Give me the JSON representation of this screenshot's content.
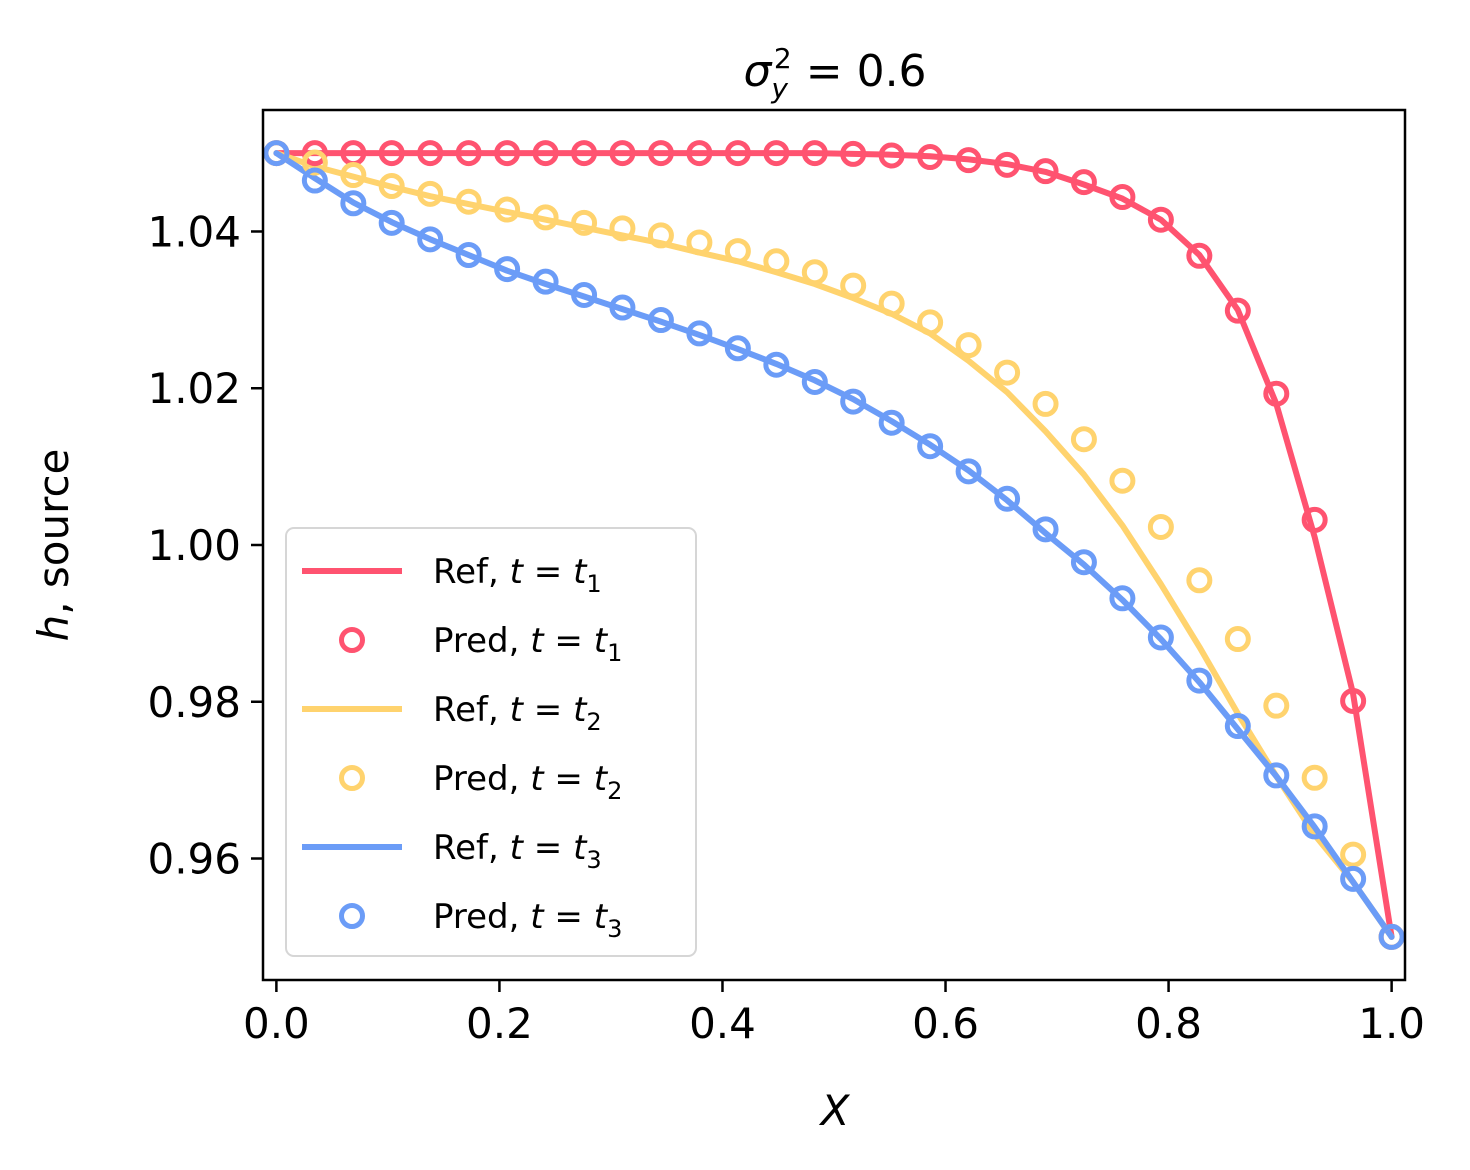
{
  "chart_data": {
    "type": "line",
    "title": {
      "base": "σ",
      "sub": "y",
      "sup": "2",
      "rest": " = 0.6"
    },
    "xlabel": "X",
    "ylabel": {
      "italic": "h",
      "rest": ", source"
    },
    "xlim": [
      -0.012,
      1.012
    ],
    "ylim": [
      0.9445,
      1.0555
    ],
    "xticks": [
      0.0,
      0.2,
      0.4,
      0.6,
      0.8,
      1.0
    ],
    "xtick_labels": [
      "0.0",
      "0.2",
      "0.4",
      "0.6",
      "0.8",
      "1.0"
    ],
    "yticks": [
      0.96,
      0.98,
      1.0,
      1.02,
      1.04
    ],
    "ytick_labels": [
      "0.96",
      "0.98",
      "1.00",
      "1.02",
      "1.04"
    ],
    "legend_position": "lower-left",
    "colors": {
      "t1": "#ff5370",
      "t2": "#ffd36e",
      "t3": "#6b9cf7"
    },
    "x": [
      0.0,
      0.0345,
      0.069,
      0.1034,
      0.1379,
      0.1724,
      0.2069,
      0.2414,
      0.2759,
      0.3103,
      0.3448,
      0.3793,
      0.4138,
      0.4483,
      0.4828,
      0.5172,
      0.5517,
      0.5862,
      0.6207,
      0.6552,
      0.6897,
      0.7241,
      0.7586,
      0.7931,
      0.8276,
      0.8621,
      0.8966,
      0.931,
      0.9655,
      1.0
    ],
    "series": [
      {
        "name": "Ref, t = t1",
        "kind": "ref",
        "color_key": "t1",
        "values": [
          1.05,
          1.05,
          1.05,
          1.05,
          1.05,
          1.05,
          1.05,
          1.05,
          1.05,
          1.05,
          1.05,
          1.05,
          1.05,
          1.05,
          1.05,
          1.0499,
          1.0498,
          1.0496,
          1.0492,
          1.0486,
          1.0476,
          1.046,
          1.0442,
          1.0415,
          1.037,
          1.03,
          1.018,
          1.001,
          0.981,
          0.95
        ]
      },
      {
        "name": "Pred, t = t1",
        "kind": "pred",
        "color_key": "t1",
        "values": [
          1.05,
          1.05,
          1.05,
          1.05,
          1.05,
          1.05,
          1.05,
          1.05,
          1.05,
          1.05,
          1.05,
          1.05,
          1.05,
          1.05,
          1.05,
          1.0499,
          1.0497,
          1.0495,
          1.0491,
          1.0485,
          1.0477,
          1.0463,
          1.0444,
          1.0415,
          1.0369,
          1.0299,
          1.0193,
          1.0032,
          0.9801,
          0.95
        ]
      },
      {
        "name": "Ref, t = t2",
        "kind": "ref",
        "color_key": "t2",
        "values": [
          1.05,
          1.0483,
          1.047,
          1.0457,
          1.0445,
          1.0435,
          1.0425,
          1.0415,
          1.0405,
          1.0395,
          1.0385,
          1.0373,
          1.0362,
          1.0348,
          1.0333,
          1.0315,
          1.0295,
          1.027,
          1.0235,
          1.0195,
          1.0145,
          1.009,
          1.0025,
          0.995,
          0.987,
          0.9785,
          0.9705,
          0.963,
          0.957,
          0.95
        ]
      },
      {
        "name": "Pred, t = t2",
        "kind": "pred",
        "color_key": "t2",
        "values": [
          1.05,
          1.0488,
          1.0472,
          1.0458,
          1.0448,
          1.0438,
          1.0428,
          1.0418,
          1.0411,
          1.0404,
          1.0395,
          1.0386,
          1.0375,
          1.0362,
          1.0348,
          1.0331,
          1.0308,
          1.0284,
          1.0255,
          1.022,
          1.018,
          1.0135,
          1.0082,
          1.0023,
          0.9955,
          0.988,
          0.9795,
          0.9703,
          0.9605,
          0.95
        ]
      },
      {
        "name": "Ref, t = t3",
        "kind": "ref",
        "color_key": "t3",
        "values": [
          1.05,
          1.0468,
          1.0437,
          1.0412,
          1.039,
          1.037,
          1.035,
          1.0333,
          1.0317,
          1.0301,
          1.0285,
          1.0268,
          1.025,
          1.0231,
          1.021,
          1.0186,
          1.0158,
          1.0128,
          1.0095,
          1.0057,
          1.0015,
          0.9975,
          0.993,
          0.988,
          0.9825,
          0.9765,
          0.9705,
          0.964,
          0.957,
          0.95
        ]
      },
      {
        "name": "Pred, t = t3",
        "kind": "pred",
        "color_key": "t3",
        "values": [
          1.05,
          1.0465,
          1.0436,
          1.0411,
          1.039,
          1.037,
          1.0352,
          1.0336,
          1.0319,
          1.0303,
          1.0287,
          1.027,
          1.0251,
          1.023,
          1.0208,
          1.0183,
          1.0156,
          1.0126,
          1.0094,
          1.0059,
          1.002,
          0.9978,
          0.9932,
          0.9882,
          0.9827,
          0.9769,
          0.9706,
          0.9641,
          0.9574,
          0.95
        ]
      }
    ],
    "legend": [
      {
        "kind": "ref",
        "color_key": "t1",
        "label": "Ref, ",
        "t": "t",
        "eq": " = ",
        "tsub": "t",
        "sub": "1"
      },
      {
        "kind": "pred",
        "color_key": "t1",
        "label": "Pred, ",
        "t": "t",
        "eq": " = ",
        "tsub": "t",
        "sub": "1"
      },
      {
        "kind": "ref",
        "color_key": "t2",
        "label": "Ref, ",
        "t": "t",
        "eq": " = ",
        "tsub": "t",
        "sub": "2"
      },
      {
        "kind": "pred",
        "color_key": "t2",
        "label": "Pred, ",
        "t": "t",
        "eq": " = ",
        "tsub": "t",
        "sub": "2"
      },
      {
        "kind": "ref",
        "color_key": "t3",
        "label": "Ref, ",
        "t": "t",
        "eq": " = ",
        "tsub": "t",
        "sub": "3"
      },
      {
        "kind": "pred",
        "color_key": "t3",
        "label": "Pred, ",
        "t": "t",
        "eq": " = ",
        "tsub": "t",
        "sub": "3"
      }
    ]
  }
}
